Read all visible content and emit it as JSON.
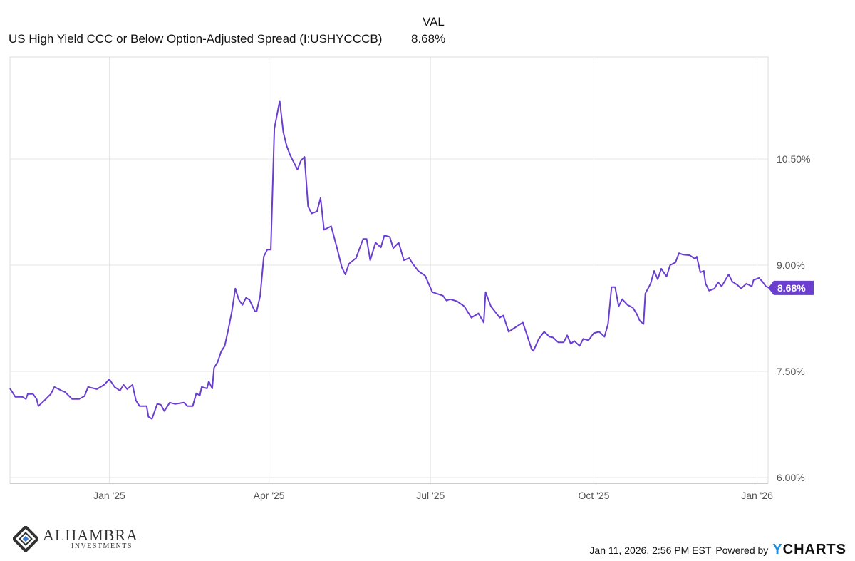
{
  "header": {
    "value_column": "VAL",
    "series_name": "US High Yield CCC or Below Option-Adjusted Spread (I:USHYCCCB)",
    "series_value": "8.68%"
  },
  "footer": {
    "timestamp": "Jan 11, 2026, 2:56 PM EST",
    "powered_by": "Powered by",
    "brand_y": "Y",
    "brand_rest": "CHARTS"
  },
  "logo": {
    "name": "ALHAMBRA",
    "sub": "INVESTMENTS"
  },
  "colors": {
    "line": "#6a3fcf",
    "grid": "#e6e6e6",
    "ycharts_blue": "#1a8fe3"
  },
  "chart_data": {
    "type": "line",
    "title": "US High Yield CCC or Below Option-Adjusted Spread (I:USHYCCCB)",
    "x_unit": "days since 2025-01-01",
    "xlim": [
      -56,
      372
    ],
    "ylim": [
      5.92,
      11.94
    ],
    "grid": true,
    "y_ticks": [
      {
        "value": 6.0,
        "label": "6.00%"
      },
      {
        "value": 7.5,
        "label": "7.50%"
      },
      {
        "value": 9.0,
        "label": "9.00%"
      },
      {
        "value": 10.5,
        "label": "10.50%"
      }
    ],
    "x_ticks": [
      {
        "value": 0,
        "label": "Jan '25"
      },
      {
        "value": 90,
        "label": "Apr '25"
      },
      {
        "value": 181,
        "label": "Jul '25"
      },
      {
        "value": 273,
        "label": "Oct '25"
      },
      {
        "value": 365,
        "label": "Jan '26"
      }
    ],
    "last_label": "8.68%",
    "series": [
      {
        "name": "US High Yield CCC or Below Option-Adjusted Spread",
        "points": [
          [
            -56,
            7.26
          ],
          [
            -53,
            7.14
          ],
          [
            -49,
            7.14
          ],
          [
            -47,
            7.11
          ],
          [
            -46,
            7.18
          ],
          [
            -43,
            7.18
          ],
          [
            -41,
            7.11
          ],
          [
            -40,
            7.01
          ],
          [
            -37,
            7.08
          ],
          [
            -33,
            7.18
          ],
          [
            -31,
            7.28
          ],
          [
            -27,
            7.23
          ],
          [
            -25,
            7.21
          ],
          [
            -21,
            7.11
          ],
          [
            -17,
            7.11
          ],
          [
            -14,
            7.15
          ],
          [
            -12,
            7.28
          ],
          [
            -7,
            7.25
          ],
          [
            -3,
            7.31
          ],
          [
            0,
            7.39
          ],
          [
            3,
            7.28
          ],
          [
            6,
            7.23
          ],
          [
            8,
            7.31
          ],
          [
            10,
            7.25
          ],
          [
            13,
            7.31
          ],
          [
            15,
            7.09
          ],
          [
            17,
            7.01
          ],
          [
            21,
            7.01
          ],
          [
            22,
            6.86
          ],
          [
            24,
            6.83
          ],
          [
            27,
            7.04
          ],
          [
            29,
            7.03
          ],
          [
            31,
            6.94
          ],
          [
            34,
            7.06
          ],
          [
            37,
            7.04
          ],
          [
            42,
            7.06
          ],
          [
            44,
            7.01
          ],
          [
            47,
            7.01
          ],
          [
            49,
            7.19
          ],
          [
            51,
            7.16
          ],
          [
            52,
            7.28
          ],
          [
            55,
            7.26
          ],
          [
            56,
            7.36
          ],
          [
            58,
            7.26
          ],
          [
            59,
            7.55
          ],
          [
            61,
            7.63
          ],
          [
            63,
            7.78
          ],
          [
            65,
            7.86
          ],
          [
            67,
            8.09
          ],
          [
            69,
            8.34
          ],
          [
            71,
            8.67
          ],
          [
            73,
            8.51
          ],
          [
            75,
            8.44
          ],
          [
            77,
            8.54
          ],
          [
            79,
            8.51
          ],
          [
            82,
            8.35
          ],
          [
            83,
            8.35
          ],
          [
            85,
            8.57
          ],
          [
            87,
            9.12
          ],
          [
            89,
            9.22
          ],
          [
            91,
            9.22
          ],
          [
            93,
            10.93
          ],
          [
            96,
            11.32
          ],
          [
            98,
            10.88
          ],
          [
            100,
            10.68
          ],
          [
            102,
            10.55
          ],
          [
            104,
            10.45
          ],
          [
            106,
            10.35
          ],
          [
            108,
            10.48
          ],
          [
            110,
            10.53
          ],
          [
            112,
            9.83
          ],
          [
            114,
            9.73
          ],
          [
            117,
            9.76
          ],
          [
            119,
            9.95
          ],
          [
            121,
            9.5
          ],
          [
            125,
            9.55
          ],
          [
            128,
            9.27
          ],
          [
            131,
            8.97
          ],
          [
            133,
            8.87
          ],
          [
            135,
            9.02
          ],
          [
            139,
            9.1
          ],
          [
            143,
            9.37
          ],
          [
            145,
            9.37
          ],
          [
            147,
            9.07
          ],
          [
            150,
            9.32
          ],
          [
            153,
            9.25
          ],
          [
            155,
            9.42
          ],
          [
            158,
            9.4
          ],
          [
            160,
            9.24
          ],
          [
            163,
            9.32
          ],
          [
            166,
            9.07
          ],
          [
            169,
            9.1
          ],
          [
            171,
            9.02
          ],
          [
            174,
            8.92
          ],
          [
            178,
            8.85
          ],
          [
            182,
            8.62
          ],
          [
            188,
            8.57
          ],
          [
            190,
            8.5
          ],
          [
            192,
            8.52
          ],
          [
            196,
            8.49
          ],
          [
            200,
            8.42
          ],
          [
            204,
            8.26
          ],
          [
            208,
            8.32
          ],
          [
            211,
            8.19
          ],
          [
            212,
            8.62
          ],
          [
            215,
            8.42
          ],
          [
            220,
            8.26
          ],
          [
            222,
            8.29
          ],
          [
            225,
            8.06
          ],
          [
            228,
            8.11
          ],
          [
            233,
            8.19
          ],
          [
            235,
            8.04
          ],
          [
            238,
            7.81
          ],
          [
            239,
            7.79
          ],
          [
            242,
            7.96
          ],
          [
            245,
            8.06
          ],
          [
            248,
            7.99
          ],
          [
            250,
            7.98
          ],
          [
            253,
            7.91
          ],
          [
            256,
            7.91
          ],
          [
            258,
            8.01
          ],
          [
            260,
            7.89
          ],
          [
            262,
            7.93
          ],
          [
            265,
            7.86
          ],
          [
            267,
            7.96
          ],
          [
            270,
            7.94
          ],
          [
            273,
            8.04
          ],
          [
            276,
            8.06
          ],
          [
            279,
            7.99
          ],
          [
            281,
            8.17
          ],
          [
            283,
            8.69
          ],
          [
            285,
            8.69
          ],
          [
            287,
            8.42
          ],
          [
            289,
            8.52
          ],
          [
            292,
            8.44
          ],
          [
            295,
            8.4
          ],
          [
            297,
            8.32
          ],
          [
            299,
            8.21
          ],
          [
            301,
            8.17
          ],
          [
            302,
            8.6
          ],
          [
            305,
            8.74
          ],
          [
            307,
            8.92
          ],
          [
            309,
            8.8
          ],
          [
            311,
            8.95
          ],
          [
            314,
            8.84
          ],
          [
            316,
            9.0
          ],
          [
            319,
            9.04
          ],
          [
            321,
            9.17
          ],
          [
            323,
            9.15
          ],
          [
            327,
            9.14
          ],
          [
            330,
            9.09
          ],
          [
            331,
            9.12
          ],
          [
            333,
            8.9
          ],
          [
            335,
            8.92
          ],
          [
            336,
            8.74
          ],
          [
            338,
            8.64
          ],
          [
            341,
            8.67
          ],
          [
            343,
            8.76
          ],
          [
            345,
            8.7
          ],
          [
            349,
            8.87
          ],
          [
            351,
            8.77
          ],
          [
            354,
            8.72
          ],
          [
            356,
            8.67
          ],
          [
            359,
            8.74
          ],
          [
            362,
            8.7
          ],
          [
            363,
            8.79
          ],
          [
            366,
            8.82
          ],
          [
            368,
            8.77
          ],
          [
            370,
            8.7
          ],
          [
            372,
            8.68
          ]
        ]
      }
    ]
  }
}
